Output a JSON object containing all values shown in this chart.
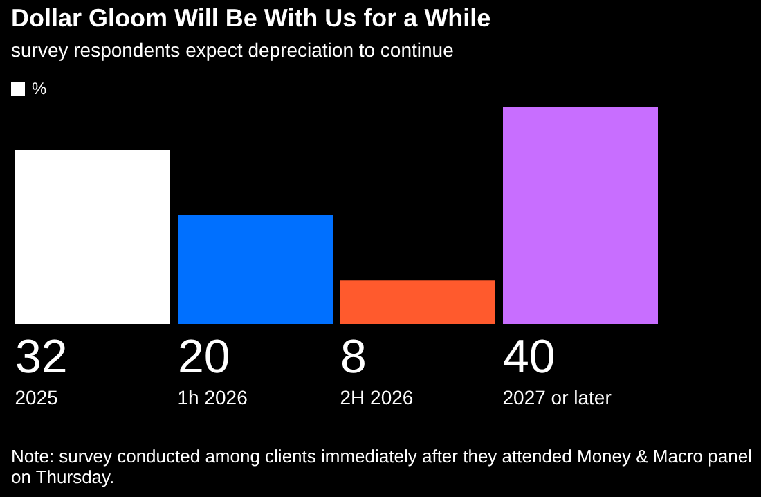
{
  "chart_data": {
    "type": "bar",
    "title": "Dollar Gloom Will Be With Us for a While",
    "subtitle": "survey respondents expect depreciation to continue",
    "categories": [
      "2025",
      "1h 2026",
      "2H 2026",
      "2027 or later"
    ],
    "series": [
      {
        "name": "%",
        "color": "#ffffff",
        "values": [
          32,
          20,
          8,
          40
        ],
        "colors": [
          "#ffffff",
          "#0070ff",
          "#ff5a2d",
          "#c86eff"
        ]
      }
    ],
    "data_labels": true,
    "legend": "top left",
    "annotations": [
      "Note: survey conducted among clients immediately after they attended Money & Macro panel on Thursday."
    ]
  }
}
